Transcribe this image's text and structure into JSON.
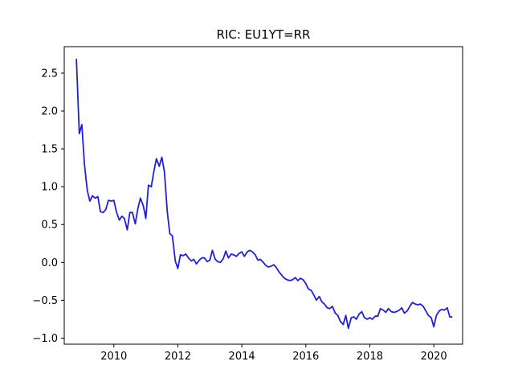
{
  "chart_data": {
    "type": "line",
    "title": "RIC: EU1YT=RR",
    "xlabel": "",
    "ylabel": "",
    "xlim": [
      2008.45,
      2020.9
    ],
    "ylim": [
      -1.08,
      2.85
    ],
    "xticks": [
      2010,
      2012,
      2014,
      2016,
      2018,
      2020
    ],
    "yticks": [
      -1.0,
      -0.5,
      0.0,
      0.5,
      1.0,
      1.5,
      2.0,
      2.5
    ],
    "grid": false,
    "series": [
      {
        "name": "",
        "color": "#1f1fe0",
        "points": [
          [
            2008.83,
            2.69
          ],
          [
            2008.92,
            1.7
          ],
          [
            2009.0,
            1.82
          ],
          [
            2009.08,
            1.3
          ],
          [
            2009.17,
            0.95
          ],
          [
            2009.25,
            0.81
          ],
          [
            2009.33,
            0.88
          ],
          [
            2009.42,
            0.85
          ],
          [
            2009.5,
            0.87
          ],
          [
            2009.58,
            0.67
          ],
          [
            2009.67,
            0.66
          ],
          [
            2009.75,
            0.7
          ],
          [
            2009.83,
            0.82
          ],
          [
            2009.92,
            0.81
          ],
          [
            2010.0,
            0.82
          ],
          [
            2010.08,
            0.67
          ],
          [
            2010.17,
            0.56
          ],
          [
            2010.25,
            0.61
          ],
          [
            2010.33,
            0.58
          ],
          [
            2010.42,
            0.43
          ],
          [
            2010.5,
            0.66
          ],
          [
            2010.58,
            0.66
          ],
          [
            2010.67,
            0.51
          ],
          [
            2010.75,
            0.71
          ],
          [
            2010.83,
            0.85
          ],
          [
            2010.92,
            0.75
          ],
          [
            2011.0,
            0.58
          ],
          [
            2011.08,
            1.02
          ],
          [
            2011.17,
            1.0
          ],
          [
            2011.25,
            1.2
          ],
          [
            2011.33,
            1.37
          ],
          [
            2011.42,
            1.27
          ],
          [
            2011.5,
            1.39
          ],
          [
            2011.58,
            1.2
          ],
          [
            2011.67,
            0.67
          ],
          [
            2011.75,
            0.38
          ],
          [
            2011.83,
            0.35
          ],
          [
            2011.92,
            0.02
          ],
          [
            2012.0,
            -0.08
          ],
          [
            2012.08,
            0.1
          ],
          [
            2012.17,
            0.09
          ],
          [
            2012.25,
            0.11
          ],
          [
            2012.33,
            0.06
          ],
          [
            2012.42,
            0.02
          ],
          [
            2012.5,
            0.04
          ],
          [
            2012.58,
            -0.02
          ],
          [
            2012.67,
            0.03
          ],
          [
            2012.75,
            0.06
          ],
          [
            2012.83,
            0.06
          ],
          [
            2012.92,
            0.01
          ],
          [
            2013.0,
            0.03
          ],
          [
            2013.08,
            0.16
          ],
          [
            2013.17,
            0.04
          ],
          [
            2013.25,
            0.01
          ],
          [
            2013.33,
            0.0
          ],
          [
            2013.42,
            0.05
          ],
          [
            2013.5,
            0.15
          ],
          [
            2013.58,
            0.06
          ],
          [
            2013.67,
            0.11
          ],
          [
            2013.75,
            0.1
          ],
          [
            2013.83,
            0.08
          ],
          [
            2013.92,
            0.12
          ],
          [
            2014.0,
            0.14
          ],
          [
            2014.08,
            0.08
          ],
          [
            2014.17,
            0.14
          ],
          [
            2014.25,
            0.16
          ],
          [
            2014.33,
            0.14
          ],
          [
            2014.42,
            0.1
          ],
          [
            2014.5,
            0.03
          ],
          [
            2014.58,
            0.04
          ],
          [
            2014.67,
            0.0
          ],
          [
            2014.75,
            -0.04
          ],
          [
            2014.83,
            -0.06
          ],
          [
            2014.92,
            -0.05
          ],
          [
            2015.0,
            -0.03
          ],
          [
            2015.08,
            -0.07
          ],
          [
            2015.17,
            -0.13
          ],
          [
            2015.25,
            -0.17
          ],
          [
            2015.33,
            -0.21
          ],
          [
            2015.42,
            -0.23
          ],
          [
            2015.5,
            -0.24
          ],
          [
            2015.58,
            -0.23
          ],
          [
            2015.67,
            -0.2
          ],
          [
            2015.75,
            -0.24
          ],
          [
            2015.83,
            -0.21
          ],
          [
            2015.92,
            -0.23
          ],
          [
            2016.0,
            -0.28
          ],
          [
            2016.08,
            -0.35
          ],
          [
            2016.17,
            -0.37
          ],
          [
            2016.25,
            -0.43
          ],
          [
            2016.33,
            -0.5
          ],
          [
            2016.42,
            -0.45
          ],
          [
            2016.5,
            -0.52
          ],
          [
            2016.58,
            -0.55
          ],
          [
            2016.67,
            -0.6
          ],
          [
            2016.75,
            -0.61
          ],
          [
            2016.83,
            -0.58
          ],
          [
            2016.92,
            -0.67
          ],
          [
            2017.0,
            -0.7
          ],
          [
            2017.08,
            -0.78
          ],
          [
            2017.17,
            -0.82
          ],
          [
            2017.25,
            -0.7
          ],
          [
            2017.33,
            -0.87
          ],
          [
            2017.42,
            -0.73
          ],
          [
            2017.5,
            -0.72
          ],
          [
            2017.58,
            -0.75
          ],
          [
            2017.67,
            -0.68
          ],
          [
            2017.75,
            -0.65
          ],
          [
            2017.83,
            -0.73
          ],
          [
            2017.92,
            -0.75
          ],
          [
            2018.0,
            -0.73
          ],
          [
            2018.08,
            -0.75
          ],
          [
            2018.17,
            -0.71
          ],
          [
            2018.25,
            -0.71
          ],
          [
            2018.33,
            -0.61
          ],
          [
            2018.42,
            -0.63
          ],
          [
            2018.5,
            -0.66
          ],
          [
            2018.58,
            -0.61
          ],
          [
            2018.67,
            -0.65
          ],
          [
            2018.75,
            -0.66
          ],
          [
            2018.83,
            -0.65
          ],
          [
            2018.92,
            -0.63
          ],
          [
            2019.0,
            -0.6
          ],
          [
            2019.08,
            -0.67
          ],
          [
            2019.17,
            -0.64
          ],
          [
            2019.25,
            -0.58
          ],
          [
            2019.33,
            -0.53
          ],
          [
            2019.42,
            -0.55
          ],
          [
            2019.5,
            -0.56
          ],
          [
            2019.58,
            -0.55
          ],
          [
            2019.67,
            -0.58
          ],
          [
            2019.75,
            -0.64
          ],
          [
            2019.83,
            -0.7
          ],
          [
            2019.92,
            -0.73
          ],
          [
            2020.0,
            -0.85
          ],
          [
            2020.08,
            -0.7
          ],
          [
            2020.17,
            -0.64
          ],
          [
            2020.25,
            -0.62
          ],
          [
            2020.33,
            -0.63
          ],
          [
            2020.42,
            -0.6
          ],
          [
            2020.5,
            -0.72
          ],
          [
            2020.58,
            -0.72
          ]
        ]
      }
    ]
  }
}
